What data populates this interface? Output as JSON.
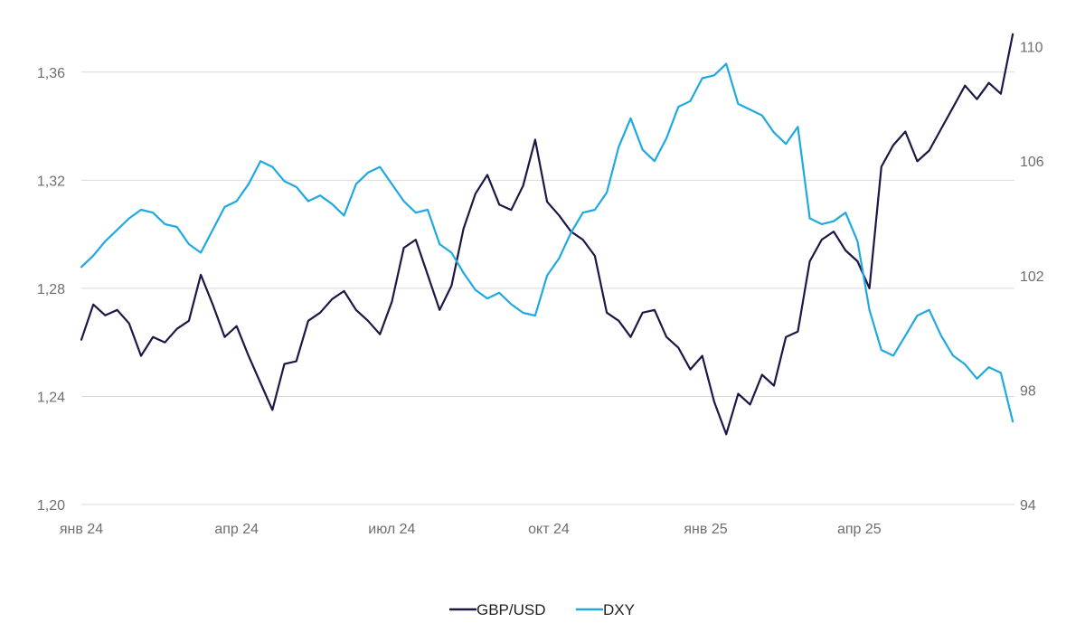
{
  "chart_data": {
    "type": "line",
    "title": "",
    "xlabel": "",
    "ylabel": "",
    "grid": true,
    "legend_position": "bottom-center",
    "x_ticks": [
      "янв 24",
      "апр 24",
      "июл 24",
      "окт 24",
      "янв 25",
      "апр 25"
    ],
    "x_tick_dates": [
      "2024-01-01",
      "2024-04-01",
      "2024-07-01",
      "2024-10-01",
      "2025-01-01",
      "2025-04-01"
    ],
    "x_range": [
      "2024-01-01",
      "2025-07-01"
    ],
    "y_left": {
      "series": "GBP/USD",
      "range": [
        1.2,
        1.38
      ],
      "ticks": [
        "1,20",
        "1,24",
        "1,28",
        "1,32",
        "1,36"
      ]
    },
    "y_right": {
      "series": "DXY",
      "range": [
        94,
        111
      ],
      "ticks": [
        "94",
        "98",
        "102",
        "106",
        "110"
      ]
    },
    "series": [
      {
        "name": "GBP/USD",
        "axis": "left",
        "color": "#1b1845",
        "x": [
          "2024-01-01",
          "2024-01-08",
          "2024-01-15",
          "2024-01-22",
          "2024-01-29",
          "2024-02-05",
          "2024-02-12",
          "2024-02-19",
          "2024-02-26",
          "2024-03-04",
          "2024-03-11",
          "2024-03-18",
          "2024-03-25",
          "2024-04-01",
          "2024-04-08",
          "2024-04-15",
          "2024-04-22",
          "2024-04-29",
          "2024-05-06",
          "2024-05-13",
          "2024-05-20",
          "2024-05-27",
          "2024-06-03",
          "2024-06-10",
          "2024-06-17",
          "2024-06-24",
          "2024-07-01",
          "2024-07-08",
          "2024-07-15",
          "2024-07-22",
          "2024-07-29",
          "2024-08-05",
          "2024-08-12",
          "2024-08-19",
          "2024-08-26",
          "2024-09-02",
          "2024-09-09",
          "2024-09-16",
          "2024-09-23",
          "2024-09-30",
          "2024-10-07",
          "2024-10-14",
          "2024-10-21",
          "2024-10-28",
          "2024-11-04",
          "2024-11-11",
          "2024-11-18",
          "2024-11-25",
          "2024-12-02",
          "2024-12-09",
          "2024-12-16",
          "2024-12-23",
          "2024-12-30",
          "2025-01-06",
          "2025-01-13",
          "2025-01-20",
          "2025-01-27",
          "2025-02-03",
          "2025-02-10",
          "2025-02-17",
          "2025-02-24",
          "2025-03-03",
          "2025-03-10",
          "2025-03-17",
          "2025-03-24",
          "2025-03-31",
          "2025-04-07",
          "2025-04-14",
          "2025-04-21",
          "2025-04-28",
          "2025-05-05",
          "2025-05-12",
          "2025-05-19",
          "2025-05-26",
          "2025-06-02",
          "2025-06-09",
          "2025-06-16",
          "2025-06-23",
          "2025-06-30"
        ],
        "values": [
          1.261,
          1.274,
          1.27,
          1.272,
          1.267,
          1.255,
          1.262,
          1.26,
          1.265,
          1.268,
          1.285,
          1.274,
          1.262,
          1.266,
          1.255,
          1.245,
          1.235,
          1.252,
          1.253,
          1.268,
          1.271,
          1.276,
          1.279,
          1.272,
          1.268,
          1.263,
          1.275,
          1.295,
          1.298,
          1.285,
          1.272,
          1.281,
          1.302,
          1.315,
          1.322,
          1.311,
          1.309,
          1.318,
          1.335,
          1.312,
          1.307,
          1.301,
          1.298,
          1.292,
          1.271,
          1.268,
          1.262,
          1.271,
          1.272,
          1.262,
          1.258,
          1.25,
          1.255,
          1.238,
          1.226,
          1.241,
          1.237,
          1.248,
          1.244,
          1.262,
          1.264,
          1.29,
          1.298,
          1.301,
          1.294,
          1.29,
          1.28,
          1.325,
          1.333,
          1.338,
          1.327,
          1.331,
          1.339,
          1.347,
          1.355,
          1.35,
          1.356,
          1.352,
          1.374
        ]
      },
      {
        "name": "DXY",
        "axis": "right",
        "color": "#1fa9e1",
        "x": [
          "2024-01-01",
          "2024-01-08",
          "2024-01-15",
          "2024-01-22",
          "2024-01-29",
          "2024-02-05",
          "2024-02-12",
          "2024-02-19",
          "2024-02-26",
          "2024-03-04",
          "2024-03-11",
          "2024-03-18",
          "2024-03-25",
          "2024-04-01",
          "2024-04-08",
          "2024-04-15",
          "2024-04-22",
          "2024-04-29",
          "2024-05-06",
          "2024-05-13",
          "2024-05-20",
          "2024-05-27",
          "2024-06-03",
          "2024-06-10",
          "2024-06-17",
          "2024-06-24",
          "2024-07-01",
          "2024-07-08",
          "2024-07-15",
          "2024-07-22",
          "2024-07-29",
          "2024-08-05",
          "2024-08-12",
          "2024-08-19",
          "2024-08-26",
          "2024-09-02",
          "2024-09-09",
          "2024-09-16",
          "2024-09-23",
          "2024-09-30",
          "2024-10-07",
          "2024-10-14",
          "2024-10-21",
          "2024-10-28",
          "2024-11-04",
          "2024-11-11",
          "2024-11-18",
          "2024-11-25",
          "2024-12-02",
          "2024-12-09",
          "2024-12-16",
          "2024-12-23",
          "2024-12-30",
          "2025-01-06",
          "2025-01-13",
          "2025-01-20",
          "2025-01-27",
          "2025-02-03",
          "2025-02-10",
          "2025-02-17",
          "2025-02-24",
          "2025-03-03",
          "2025-03-10",
          "2025-03-17",
          "2025-03-24",
          "2025-03-31",
          "2025-04-07",
          "2025-04-14",
          "2025-04-21",
          "2025-04-28",
          "2025-05-05",
          "2025-05-12",
          "2025-05-19",
          "2025-05-26",
          "2025-06-02",
          "2025-06-09",
          "2025-06-16",
          "2025-06-23",
          "2025-06-30"
        ],
        "values": [
          102.3,
          102.7,
          103.2,
          103.6,
          104.0,
          104.3,
          104.2,
          103.8,
          103.7,
          103.1,
          102.8,
          103.6,
          104.4,
          104.6,
          105.2,
          106.0,
          105.8,
          105.3,
          105.1,
          104.6,
          104.8,
          104.5,
          104.1,
          105.2,
          105.6,
          105.8,
          105.2,
          104.6,
          104.2,
          104.3,
          103.1,
          102.8,
          102.1,
          101.5,
          101.2,
          101.4,
          101.0,
          100.7,
          100.6,
          102.0,
          102.6,
          103.5,
          104.2,
          104.3,
          104.9,
          106.5,
          107.5,
          106.4,
          106.0,
          106.8,
          107.9,
          108.1,
          108.9,
          109.0,
          109.4,
          108.0,
          107.8,
          107.6,
          107.0,
          106.6,
          107.2,
          104.0,
          103.8,
          103.9,
          104.2,
          103.2,
          100.8,
          99.4,
          99.2,
          99.9,
          100.6,
          100.8,
          99.9,
          99.2,
          98.9,
          98.4,
          98.8,
          98.6,
          96.9
        ]
      }
    ]
  }
}
